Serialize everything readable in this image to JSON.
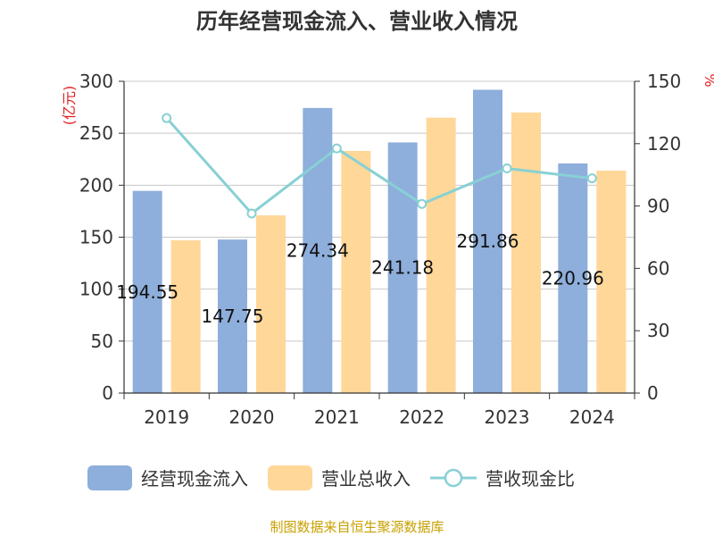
{
  "chart_data": {
    "type": "bar",
    "title": "历年经营现金流入、营业收入情况",
    "left_unit": "(亿元)",
    "right_unit": "%",
    "categories": [
      "2019",
      "2020",
      "2021",
      "2022",
      "2023",
      "2024"
    ],
    "left_ylim": [
      0,
      300
    ],
    "left_ticks": [
      0,
      50,
      100,
      150,
      200,
      250,
      300
    ],
    "right_ylim": [
      0,
      150
    ],
    "right_ticks": [
      0,
      30,
      60,
      90,
      120,
      150
    ],
    "series": [
      {
        "name": "经营现金流入",
        "type": "bar",
        "axis": "left",
        "color": "#8eaedb",
        "values": [
          194.55,
          147.75,
          274.34,
          241.18,
          291.86,
          220.96
        ],
        "labels": [
          "194.55",
          "147.75",
          "274.34",
          "241.18",
          "291.86",
          "220.96"
        ]
      },
      {
        "name": "营业总收入",
        "type": "bar",
        "axis": "left",
        "color": "#ffd799",
        "values": [
          147,
          171,
          233,
          265,
          270,
          214
        ]
      },
      {
        "name": "营收现金比",
        "type": "line",
        "axis": "right",
        "color": "#88d0d4",
        "values": [
          132.3,
          86.4,
          117.7,
          91.0,
          108.1,
          103.3
        ]
      }
    ],
    "grid": true,
    "legend_position": "bottom"
  },
  "footer": {
    "source": "制图数据来自恒生聚源数据库"
  }
}
